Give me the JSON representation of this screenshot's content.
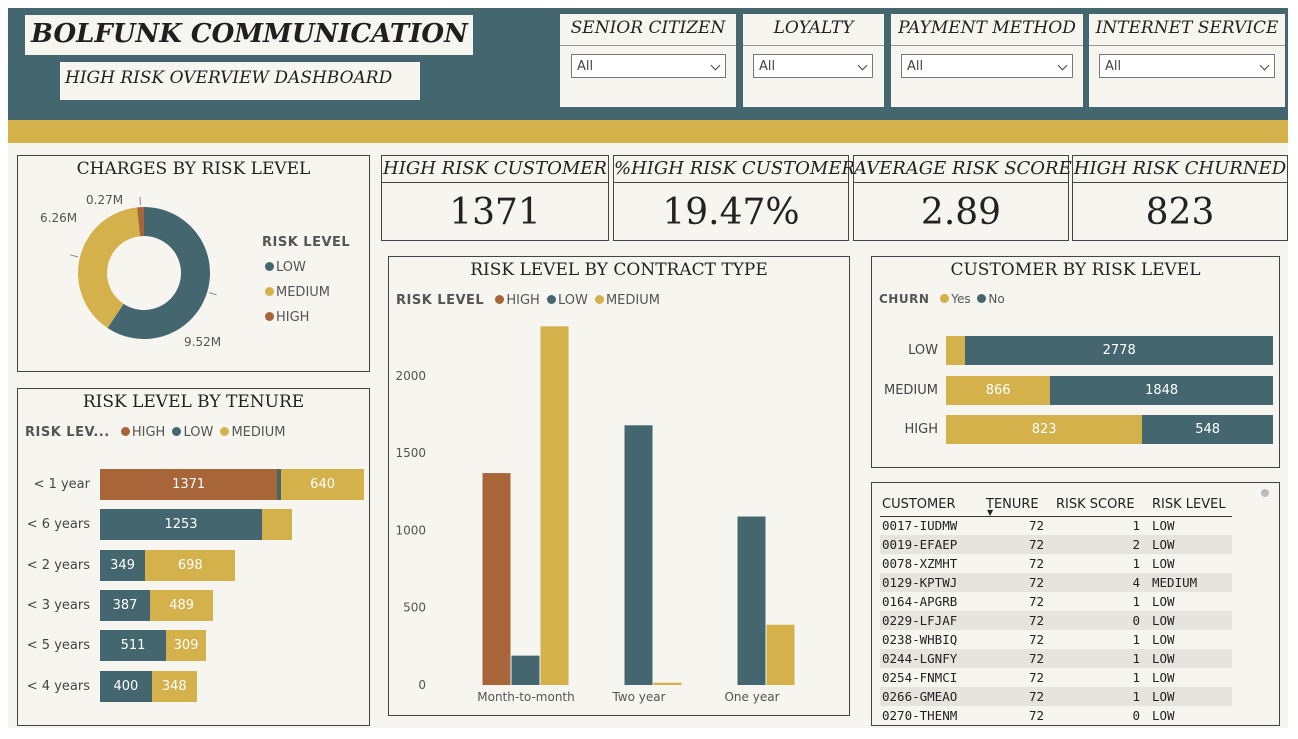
{
  "header": {
    "title": "BOLFUNK COMMUNICATION",
    "subtitle": "HIGH RISK OVERVIEW DASHBOARD"
  },
  "filters": [
    {
      "label": "SENIOR CITIZEN",
      "value": "All"
    },
    {
      "label": "LOYALTY",
      "value": "All"
    },
    {
      "label": "PAYMENT METHOD",
      "value": "All"
    },
    {
      "label": "INTERNET SERVICE",
      "value": "All"
    }
  ],
  "colors": {
    "high": "#a8653a",
    "low": "#44666f",
    "medium": "#d4b14b",
    "header": "#44666f",
    "stripe": "#d4b14b"
  },
  "kpis": [
    {
      "label": "HIGH RISK CUSTOMER",
      "value": "1371"
    },
    {
      "label": "%HIGH RISK CUSTOMER",
      "value": "19.47%"
    },
    {
      "label": "AVERAGE RISK SCORE",
      "value": "2.89"
    },
    {
      "label": "HIGH RISK CHURNED",
      "value": "823"
    }
  ],
  "charges": {
    "title": "CHARGES BY RISK LEVEL",
    "legend_title": "RISK LEVEL",
    "legend": [
      "LOW",
      "MEDIUM",
      "HIGH"
    ],
    "labels": {
      "low": "9.52M",
      "medium": "6.26M",
      "high": "0.27M"
    }
  },
  "tenure": {
    "title": "RISK LEVEL BY TENURE",
    "legend_title": "RISK LEV...",
    "legend": [
      "HIGH",
      "LOW",
      "MEDIUM"
    ]
  },
  "contract": {
    "title": "RISK LEVEL BY CONTRACT TYPE",
    "legend_title": "RISK LEVEL",
    "legend": [
      "HIGH",
      "LOW",
      "MEDIUM"
    ]
  },
  "churn": {
    "title": "CUSTOMER BY RISK LEVEL",
    "legend_title": "CHURN",
    "legend": [
      "Yes",
      "No"
    ]
  },
  "chart_data": [
    {
      "type": "pie",
      "title": "CHARGES BY RISK LEVEL",
      "categories": [
        "LOW",
        "MEDIUM",
        "HIGH"
      ],
      "values": [
        9.52,
        6.26,
        0.27
      ],
      "unit": "M"
    },
    {
      "type": "bar",
      "orientation": "horizontal",
      "stacked": true,
      "title": "RISK LEVEL BY TENURE",
      "categories": [
        "< 1 year",
        "< 6 years",
        "< 2 years",
        "< 3 years",
        "< 5 years",
        "< 4 years"
      ],
      "series": [
        {
          "name": "HIGH",
          "values": [
            1371,
            0,
            0,
            0,
            0,
            0
          ]
        },
        {
          "name": "LOW",
          "values": [
            30,
            1253,
            349,
            387,
            511,
            400
          ]
        },
        {
          "name": "MEDIUM",
          "values": [
            640,
            230,
            698,
            489,
            309,
            348
          ]
        }
      ]
    },
    {
      "type": "bar",
      "title": "RISK LEVEL BY CONTRACT TYPE",
      "categories": [
        "Month-to-month",
        "Two year",
        "One year"
      ],
      "series": [
        {
          "name": "HIGH",
          "values": [
            1371,
            0,
            0
          ]
        },
        {
          "name": "LOW",
          "values": [
            190,
            1680,
            1090
          ]
        },
        {
          "name": "MEDIUM",
          "values": [
            2320,
            15,
            390
          ]
        }
      ],
      "yticks": [
        "0",
        "500",
        "1000",
        "1500",
        "2000"
      ],
      "ylim": [
        0,
        2400
      ]
    },
    {
      "type": "bar",
      "orientation": "horizontal",
      "stacked": true,
      "title": "CUSTOMER BY RISK LEVEL",
      "categories": [
        "LOW",
        "MEDIUM",
        "HIGH"
      ],
      "series": [
        {
          "name": "Yes",
          "values": [
            175,
            866,
            823
          ]
        },
        {
          "name": "No",
          "values": [
            2778,
            1848,
            548
          ]
        }
      ],
      "data_labels": {
        "yes": [
          "",
          "866",
          "823"
        ],
        "no": [
          "2778",
          "1848",
          "548"
        ]
      }
    }
  ],
  "table": {
    "columns": [
      "CUSTOMER",
      "TENURE",
      "RISK SCORE",
      "RISK LEVEL"
    ],
    "rows": [
      [
        "0017-IUDMW",
        "72",
        "1",
        "LOW"
      ],
      [
        "0019-EFAEP",
        "72",
        "2",
        "LOW"
      ],
      [
        "0078-XZMHT",
        "72",
        "1",
        "LOW"
      ],
      [
        "0129-KPTWJ",
        "72",
        "4",
        "MEDIUM"
      ],
      [
        "0164-APGRB",
        "72",
        "1",
        "LOW"
      ],
      [
        "0229-LFJAF",
        "72",
        "0",
        "LOW"
      ],
      [
        "0238-WHBIQ",
        "72",
        "1",
        "LOW"
      ],
      [
        "0244-LGNFY",
        "72",
        "1",
        "LOW"
      ],
      [
        "0254-FNMCI",
        "72",
        "1",
        "LOW"
      ],
      [
        "0266-GMEAO",
        "72",
        "1",
        "LOW"
      ],
      [
        "0270-THENM",
        "72",
        "0",
        "LOW"
      ]
    ]
  }
}
